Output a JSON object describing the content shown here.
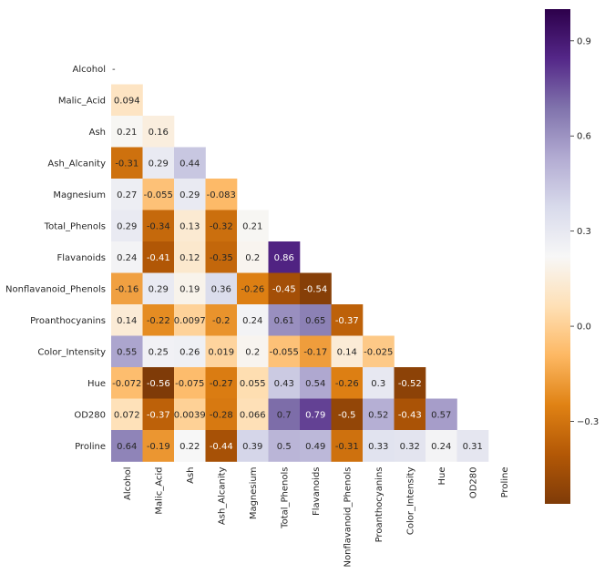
{
  "chart_data": {
    "type": "heatmap",
    "title": "",
    "labels": [
      "Alcohol",
      "Malic_Acid",
      "Ash",
      "Ash_Alcanity",
      "Magnesium",
      "Total_Phenols",
      "Flavanoids",
      "Nonflavanoid_Phenols",
      "Proanthocyanins",
      "Color_Intensity",
      "Hue",
      "OD280",
      "Proline"
    ],
    "lower_triangle": [
      [],
      [
        "0.094"
      ],
      [
        "0.21",
        "0.16"
      ],
      [
        "-0.31",
        "0.29",
        "0.44"
      ],
      [
        "0.27",
        "-0.055",
        "0.29",
        "-0.083"
      ],
      [
        "0.29",
        "-0.34",
        "0.13",
        "-0.32",
        "0.21"
      ],
      [
        "0.24",
        "-0.41",
        "0.12",
        "-0.35",
        "0.2",
        "0.86"
      ],
      [
        "-0.16",
        "0.29",
        "0.19",
        "0.36",
        "-0.26",
        "-0.45",
        "-0.54"
      ],
      [
        "0.14",
        "-0.22",
        "0.0097",
        "-0.2",
        "0.24",
        "0.61",
        "0.65",
        "-0.37"
      ],
      [
        "0.55",
        "0.25",
        "0.26",
        "0.019",
        "0.2",
        "-0.055",
        "-0.17",
        "0.14",
        "-0.025"
      ],
      [
        "-0.072",
        "-0.56",
        "-0.075",
        "-0.27",
        "0.055",
        "0.43",
        "0.54",
        "-0.26",
        "0.3",
        "-0.52"
      ],
      [
        "0.072",
        "-0.37",
        "0.0039",
        "-0.28",
        "0.066",
        "0.7",
        "0.79",
        "-0.5",
        "0.52",
        "-0.43",
        "0.57"
      ],
      [
        "0.64",
        "-0.19",
        "0.22",
        "-0.44",
        "0.39",
        "0.5",
        "0.49",
        "-0.31",
        "0.33",
        "0.32",
        "0.24",
        "0.31"
      ]
    ],
    "colorbar": {
      "min": -0.56,
      "max": 1.0,
      "ticks": [
        {
          "value": 0.9,
          "label": "0.9"
        },
        {
          "value": 0.6,
          "label": "0.6"
        },
        {
          "value": 0.3,
          "label": "0.3"
        },
        {
          "value": 0.0,
          "label": "0.0"
        },
        {
          "value": -0.3,
          "label": "−0.3"
        }
      ]
    },
    "colormap": {
      "name": "PuOr",
      "stops": [
        "#7f3b08",
        "#b35806",
        "#e08214",
        "#fdb863",
        "#fee0b6",
        "#f7f7f7",
        "#d8daeb",
        "#b2abd2",
        "#8073ac",
        "#542788",
        "#2d004b"
      ]
    },
    "diagonal_tick_mark": "-"
  }
}
